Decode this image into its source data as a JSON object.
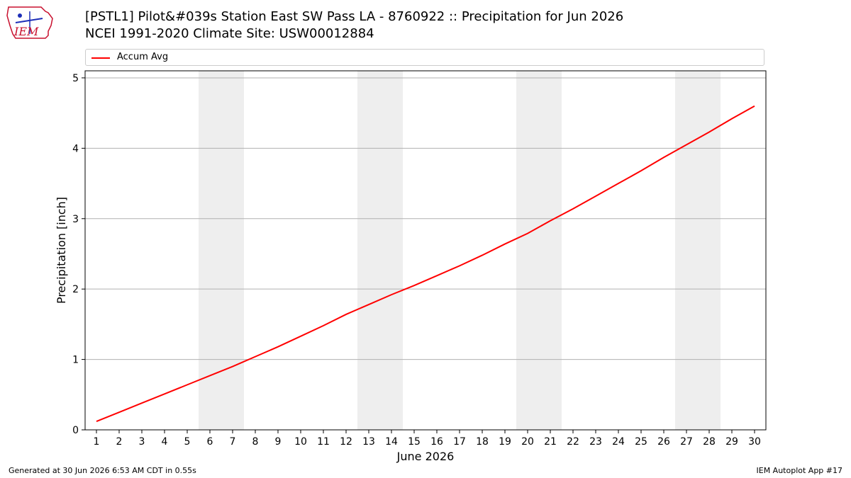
{
  "header": {
    "title_line1": "[PSTL1] Pilot&#039s Station East  SW Pass  LA - 8760922 :: Precipitation for Jun 2026",
    "title_line2": "NCEI 1991-2020 Climate Site: USW00012884",
    "logo_text": "IEM"
  },
  "footer": {
    "generated": "Generated at 30 Jun 2026 6:53 AM CDT in 0.55s",
    "app": "IEM Autoplot App #17"
  },
  "colors": {
    "series": "#ff0000",
    "weekend_band": "#eeeeee",
    "grid": "#b0b0b0",
    "logo_red": "#c8102e",
    "logo_blue": "#1d2fb8"
  },
  "chart_data": {
    "type": "line",
    "xlabel": "June 2026",
    "ylabel": "Precipitation [inch]",
    "x": [
      1,
      2,
      3,
      4,
      5,
      6,
      7,
      8,
      9,
      10,
      11,
      12,
      13,
      14,
      15,
      16,
      17,
      18,
      19,
      20,
      21,
      22,
      23,
      24,
      25,
      26,
      27,
      28,
      29,
      30
    ],
    "xlim": [
      0.5,
      30.5
    ],
    "ylim": [
      0,
      5.1
    ],
    "yticks": [
      0,
      1,
      2,
      3,
      4,
      5
    ],
    "grid": "horizontal",
    "legend_position": "top",
    "shaded_weekend_ranges": [
      [
        5.5,
        7.5
      ],
      [
        12.5,
        14.5
      ],
      [
        19.5,
        21.5
      ],
      [
        26.5,
        28.5
      ]
    ],
    "series": [
      {
        "name": "Accum Avg",
        "values": [
          0.12,
          0.25,
          0.38,
          0.51,
          0.64,
          0.77,
          0.9,
          1.04,
          1.18,
          1.33,
          1.48,
          1.64,
          1.78,
          1.92,
          2.05,
          2.19,
          2.33,
          2.48,
          2.64,
          2.79,
          2.97,
          3.14,
          3.32,
          3.5,
          3.68,
          3.87,
          4.05,
          4.23,
          4.42,
          4.6
        ]
      }
    ]
  }
}
